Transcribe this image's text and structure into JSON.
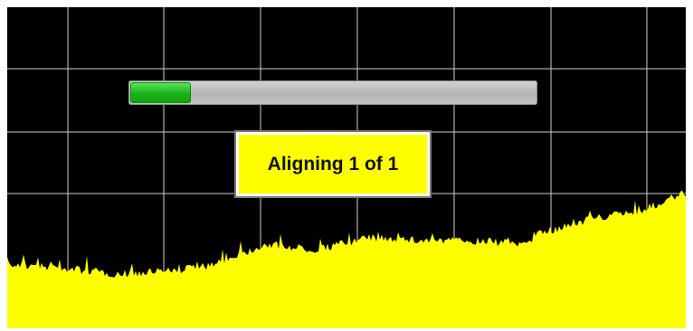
{
  "alignment_dialog": {
    "status_text": "Aligning 1 of 1",
    "progress": 0.15
  },
  "display": {
    "grid_visible": true,
    "background_color": "#000000",
    "grid_color": "#cfcfcf",
    "trace_color": "#ffff00",
    "progress_color": "#1db81d",
    "dialog_color": "#ffff00"
  }
}
